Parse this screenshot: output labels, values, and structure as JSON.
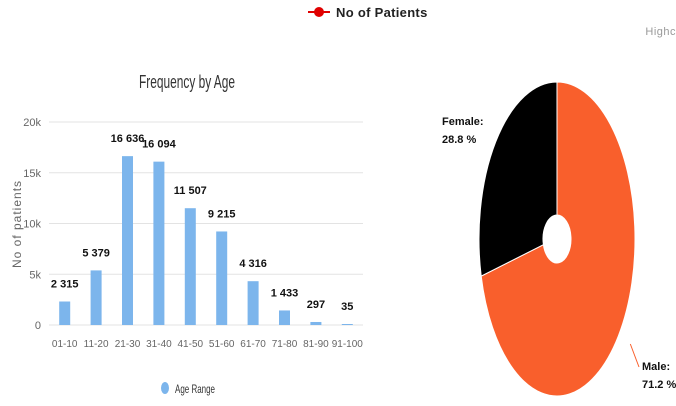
{
  "top_legend": {
    "label": "No of Patients",
    "color": "#e00000"
  },
  "credit": "Highc",
  "chart_data": [
    {
      "type": "bar",
      "title": "Frequency by Age",
      "xlabel": "",
      "ylabel": "No of patients",
      "categories": [
        "01-10",
        "11-20",
        "21-30",
        "31-40",
        "41-50",
        "51-60",
        "61-70",
        "71-80",
        "81-90",
        "91-100"
      ],
      "series": [
        {
          "name": "Age Range",
          "values": [
            2315,
            5379,
            16636,
            16094,
            11507,
            9215,
            4316,
            1433,
            297,
            35
          ],
          "color": "#7cb5ec"
        }
      ],
      "data_labels": [
        "2 315",
        "5 379",
        "16 636",
        "16 094",
        "11 507",
        "9 215",
        "4 316",
        "1 433",
        "297",
        "35"
      ],
      "ylim": [
        0,
        20000
      ],
      "yticks": [
        0,
        5000,
        10000,
        15000,
        20000
      ],
      "ytick_labels": [
        "0",
        "5k",
        "10k",
        "15k",
        "20k"
      ],
      "grid": true,
      "legend_position": "bottom"
    },
    {
      "type": "pie",
      "title": "",
      "variant": "donut",
      "slices": [
        {
          "label": "Male:",
          "value": 71.2,
          "value_label": "71.2 %",
          "color": "#f95f2c"
        },
        {
          "label": "Female:",
          "value": 28.8,
          "value_label": "28.8 %",
          "color": "#000000"
        }
      ]
    }
  ]
}
